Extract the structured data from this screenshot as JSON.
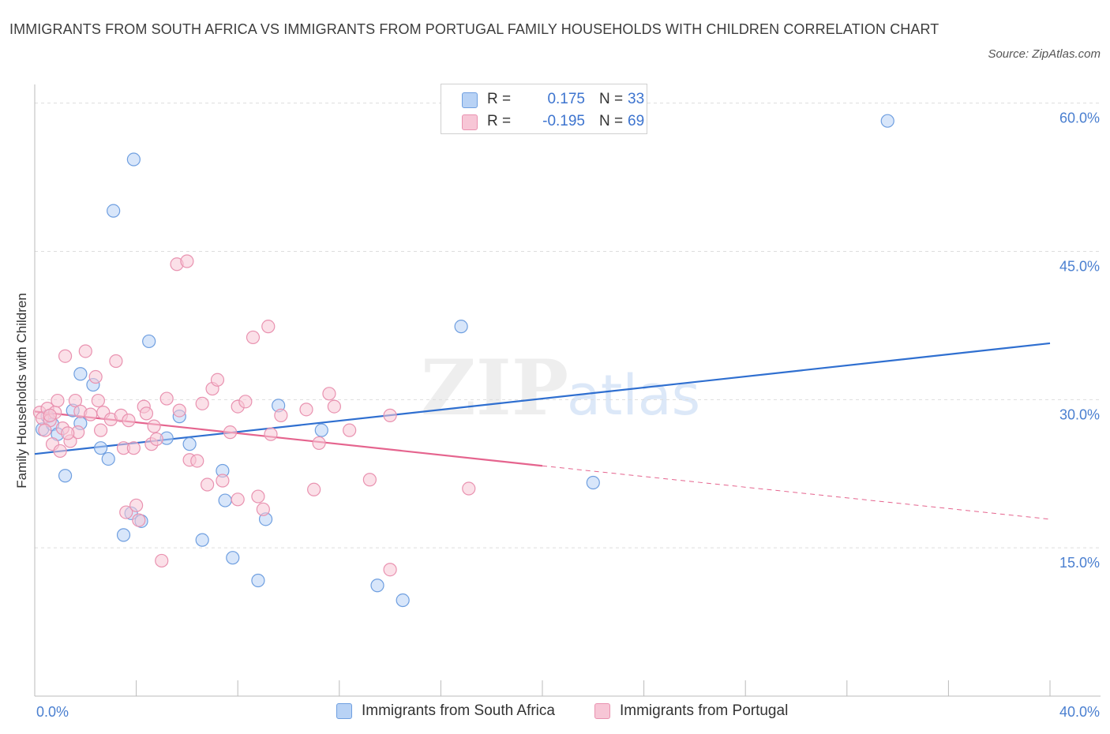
{
  "title": "IMMIGRANTS FROM SOUTH AFRICA VS IMMIGRANTS FROM PORTUGAL FAMILY HOUSEHOLDS WITH CHILDREN CORRELATION CHART",
  "source": "Source: ZipAtlas.com",
  "watermark": {
    "zip": "ZIP",
    "atlas": "atlas"
  },
  "legend": {
    "series1": {
      "r_label": "R =",
      "r_value": "0.175",
      "n_label": "N =",
      "n_value": "33"
    },
    "series2": {
      "r_label": "R =",
      "r_value": "-0.195",
      "n_label": "N =",
      "n_value": "69"
    }
  },
  "bottom_legend": {
    "series1": "Immigrants from South Africa",
    "series2": "Immigrants from Portugal"
  },
  "colors": {
    "blue_fill": "#b8d2f5",
    "blue_stroke": "#6f9fe0",
    "blue_line": "#2f6fd0",
    "pink_fill": "#f7c6d6",
    "pink_stroke": "#e992b0",
    "pink_line": "#e5648e",
    "tick_text": "#4a7fd0",
    "grid": "#dddddd"
  },
  "chart_data": {
    "type": "scatter",
    "title": "IMMIGRANTS FROM SOUTH AFRICA VS IMMIGRANTS FROM PORTUGAL FAMILY HOUSEHOLDS WITH CHILDREN CORRELATION CHART",
    "xlabel": "",
    "ylabel": "Family Households with Children",
    "xlim": [
      0,
      40
    ],
    "ylim": [
      0,
      61.25
    ],
    "x_tick_labels": [
      "0.0%",
      "40.0%"
    ],
    "y_ticks": [
      15,
      30,
      45,
      60
    ],
    "y_tick_labels": [
      "15.0%",
      "30.0%",
      "45.0%",
      "60.0%"
    ],
    "series": [
      {
        "name": "Immigrants from South Africa",
        "points": [
          [
            0.3,
            27.0
          ],
          [
            0.5,
            28.3
          ],
          [
            0.7,
            27.5
          ],
          [
            0.9,
            26.5
          ],
          [
            1.2,
            22.3
          ],
          [
            1.5,
            28.9
          ],
          [
            1.8,
            27.6
          ],
          [
            1.8,
            32.6
          ],
          [
            2.3,
            31.5
          ],
          [
            2.6,
            25.1
          ],
          [
            2.9,
            24.0
          ],
          [
            3.1,
            49.1
          ],
          [
            3.5,
            16.3
          ],
          [
            3.8,
            18.5
          ],
          [
            3.9,
            54.3
          ],
          [
            4.2,
            17.7
          ],
          [
            4.5,
            35.9
          ],
          [
            5.2,
            26.1
          ],
          [
            5.7,
            28.3
          ],
          [
            6.1,
            25.5
          ],
          [
            6.6,
            15.8
          ],
          [
            7.4,
            22.8
          ],
          [
            7.5,
            19.8
          ],
          [
            7.8,
            14.0
          ],
          [
            8.8,
            11.7
          ],
          [
            9.1,
            17.9
          ],
          [
            9.6,
            29.4
          ],
          [
            11.3,
            26.9
          ],
          [
            13.5,
            11.2
          ],
          [
            14.5,
            9.7
          ],
          [
            16.8,
            37.4
          ],
          [
            22.0,
            21.6
          ],
          [
            33.6,
            58.2
          ]
        ],
        "trend": {
          "x": [
            0,
            40
          ],
          "y": [
            24.5,
            35.7
          ]
        }
      },
      {
        "name": "Immigrants from Portugal",
        "points": [
          [
            0.2,
            28.7
          ],
          [
            0.3,
            28.1
          ],
          [
            0.5,
            29.1
          ],
          [
            0.6,
            27.9
          ],
          [
            0.7,
            25.5
          ],
          [
            0.8,
            28.7
          ],
          [
            0.9,
            29.9
          ],
          [
            1.0,
            24.8
          ],
          [
            1.1,
            27.1
          ],
          [
            1.2,
            34.4
          ],
          [
            1.4,
            25.8
          ],
          [
            1.6,
            29.9
          ],
          [
            1.7,
            26.7
          ],
          [
            1.8,
            28.8
          ],
          [
            2.0,
            34.9
          ],
          [
            2.2,
            28.5
          ],
          [
            2.4,
            32.3
          ],
          [
            2.6,
            26.9
          ],
          [
            2.7,
            28.7
          ],
          [
            3.0,
            28.0
          ],
          [
            3.2,
            33.9
          ],
          [
            3.4,
            28.4
          ],
          [
            3.5,
            25.1
          ],
          [
            3.6,
            18.6
          ],
          [
            3.7,
            27.9
          ],
          [
            3.9,
            25.1
          ],
          [
            4.0,
            19.3
          ],
          [
            4.1,
            17.8
          ],
          [
            4.3,
            29.3
          ],
          [
            4.4,
            28.6
          ],
          [
            4.6,
            25.5
          ],
          [
            4.7,
            27.3
          ],
          [
            4.8,
            26.0
          ],
          [
            5.0,
            13.7
          ],
          [
            5.2,
            30.1
          ],
          [
            5.6,
            43.7
          ],
          [
            5.7,
            28.9
          ],
          [
            6.0,
            44.0
          ],
          [
            6.1,
            23.9
          ],
          [
            6.4,
            23.8
          ],
          [
            6.6,
            29.6
          ],
          [
            6.8,
            21.4
          ],
          [
            7.0,
            31.1
          ],
          [
            7.2,
            32.0
          ],
          [
            7.4,
            21.8
          ],
          [
            7.7,
            26.7
          ],
          [
            8.0,
            29.3
          ],
          [
            8.0,
            19.9
          ],
          [
            8.3,
            29.8
          ],
          [
            8.6,
            36.3
          ],
          [
            8.8,
            20.2
          ],
          [
            9.0,
            18.9
          ],
          [
            9.2,
            37.4
          ],
          [
            9.3,
            26.5
          ],
          [
            9.7,
            28.4
          ],
          [
            10.7,
            29.0
          ],
          [
            11.0,
            20.9
          ],
          [
            11.2,
            25.6
          ],
          [
            11.6,
            30.6
          ],
          [
            11.8,
            29.3
          ],
          [
            12.4,
            26.9
          ],
          [
            13.2,
            21.9
          ],
          [
            14.0,
            12.8
          ],
          [
            14.0,
            28.4
          ],
          [
            17.1,
            21.0
          ],
          [
            0.4,
            26.9
          ],
          [
            0.6,
            28.4
          ],
          [
            1.3,
            26.6
          ],
          [
            2.5,
            29.9
          ]
        ],
        "trend": {
          "x": [
            0,
            20
          ],
          "y": [
            28.8,
            23.3
          ]
        },
        "trend_dashed": {
          "x": [
            20,
            40
          ],
          "y": [
            23.3,
            17.9
          ]
        }
      }
    ]
  }
}
